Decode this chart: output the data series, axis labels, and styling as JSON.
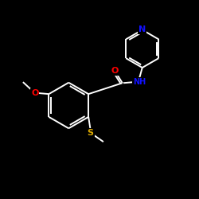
{
  "background_color": "#000000",
  "bond_color": "#ffffff",
  "atom_colors": {
    "N": "#1111ff",
    "O": "#ff0000",
    "S": "#ddaa00",
    "C": "#ffffff",
    "H": "#ffffff"
  },
  "figsize": [
    2.5,
    2.5
  ],
  "dpi": 100,
  "lw": 1.4
}
